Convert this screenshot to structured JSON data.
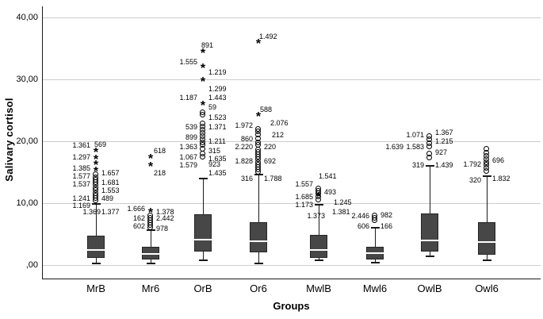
{
  "colors": {
    "box_fill": "#474747",
    "box_border": "#242424",
    "median_line": "#ffffff",
    "whisker": "#1a1a1a",
    "gridline": "#cccccc",
    "text": "#000000",
    "background": "#ffffff"
  },
  "chart_data": {
    "type": "boxplot",
    "title": "",
    "ylabel": "Salivary cortisol",
    "xlabel": "Groups",
    "ylim": [
      0,
      40
    ],
    "grid": "horizontal",
    "legend": "none",
    "yticks": [
      {
        "label": ",00",
        "value": 0
      },
      {
        "label": "10,00",
        "value": 10
      },
      {
        "label": "20,00",
        "value": 20
      },
      {
        "label": "30,00",
        "value": 30
      },
      {
        "label": "40,00",
        "value": 40
      }
    ],
    "groups": [
      {
        "name": "MrB",
        "box": {
          "whisker_low": 0.3,
          "q1": 1.2,
          "median": 2.4,
          "q3": 4.8,
          "whisker_high": 9.9
        },
        "outlier_circles": [
          14.6,
          14.1,
          13.7,
          13.3,
          12.9,
          12.5,
          12.1,
          11.6,
          11.2,
          10.8,
          10.4
        ],
        "extreme_stars": [
          18.2,
          17.0,
          16.2,
          15.1
        ],
        "labels_left": [
          {
            "text": "1.361",
            "value": 19.4
          },
          {
            "text": "1.297",
            "value": 17.4
          },
          {
            "text": "1.385",
            "value": 15.7
          },
          {
            "text": "1.577",
            "value": 14.4
          },
          {
            "text": "1.537",
            "value": 13.1
          },
          {
            "text": "1.241",
            "value": 10.8
          },
          {
            "text": "1.169",
            "value": 9.6
          },
          {
            "text": "1.369",
            "value": 8.6,
            "dx": 13
          }
        ],
        "labels_right": [
          {
            "text": "569",
            "value": 19.5,
            "dx": -9
          },
          {
            "text": "1.657",
            "value": 14.9
          },
          {
            "text": "1.681",
            "value": 13.3
          },
          {
            "text": "1.553",
            "value": 12.1
          },
          {
            "text": "489",
            "value": 10.8
          },
          {
            "text": "1.377",
            "value": 8.6
          }
        ]
      },
      {
        "name": "Mr6",
        "box": {
          "whisker_low": 0.3,
          "q1": 0.9,
          "median": 1.8,
          "q3": 2.9,
          "whisker_high": 5.6
        },
        "outlier_circles": [
          8.0,
          7.6,
          7.2,
          6.8,
          6.4,
          6.0
        ],
        "extreme_stars": [
          17.2,
          15.9,
          8.4
        ],
        "labels_left": [
          {
            "text": "1.666",
            "value": 9.1
          },
          {
            "text": "162",
            "value": 7.6
          },
          {
            "text": "602",
            "value": 6.3
          }
        ],
        "labels_right": [
          {
            "text": "618",
            "value": 18.5,
            "dx": -3
          },
          {
            "text": "218",
            "value": 14.9,
            "dx": -3
          },
          {
            "text": "1.378",
            "value": 8.6
          },
          {
            "text": "2.442",
            "value": 7.6
          },
          {
            "text": "978",
            "value": 5.9
          }
        ]
      },
      {
        "name": "OrB",
        "box": {
          "whisker_low": 0.8,
          "q1": 2.2,
          "median": 4.1,
          "q3": 8.2,
          "whisker_high": 14.0
        },
        "outlier_circles": [
          24.6,
          24.2,
          22.8,
          22.3,
          21.8,
          21.3,
          20.8,
          20.3,
          19.8,
          19.3,
          18.7,
          17.9,
          17.4
        ],
        "extreme_stars": [
          34.2,
          31.8,
          29.6,
          25.8
        ],
        "labels_left": [
          {
            "text": "1.555",
            "value": 32.8
          },
          {
            "text": "1.187",
            "value": 27.1
          },
          {
            "text": "539",
            "value": 22.3
          },
          {
            "text": "899",
            "value": 20.6
          },
          {
            "text": "1.363",
            "value": 19.1
          },
          {
            "text": "1.067",
            "value": 17.5
          },
          {
            "text": "1.579",
            "value": 16.2
          }
        ],
        "labels_right": [
          {
            "text": "891",
            "value": 35.5,
            "dx": -9
          },
          {
            "text": "1.219",
            "value": 31.1
          },
          {
            "text": "1.299",
            "value": 28.5
          },
          {
            "text": "1.443",
            "value": 27.1
          },
          {
            "text": "59",
            "value": 25.5
          },
          {
            "text": "1.523",
            "value": 23.8
          },
          {
            "text": "1.371",
            "value": 22.3
          },
          {
            "text": "1.211",
            "value": 20.0
          },
          {
            "text": "315",
            "value": 18.5
          },
          {
            "text": "1.635",
            "value": 17.2
          },
          {
            "text": "923",
            "value": 16.3
          },
          {
            "text": "1.435",
            "value": 14.9
          }
        ]
      },
      {
        "name": "Or6",
        "box": {
          "whisker_low": 0.3,
          "q1": 2.1,
          "median": 3.9,
          "q3": 6.9,
          "whisker_high": 14.6
        },
        "outlier_circles": [
          21.9,
          21.5,
          21.0,
          20.4,
          19.8,
          19.3,
          18.6,
          18.2,
          17.8,
          17.4,
          17.0,
          16.6,
          16.2,
          15.8,
          15.4,
          15.0
        ],
        "extreme_stars": [
          35.8,
          24.0
        ],
        "labels_left": [
          {
            "text": "1.972",
            "value": 22.6
          },
          {
            "text": "860",
            "value": 20.4
          },
          {
            "text": "2.220",
            "value": 19.1
          },
          {
            "text": "1.828",
            "value": 16.8
          },
          {
            "text": "316",
            "value": 14.0
          }
        ],
        "labels_right": [
          {
            "text": "1.492",
            "value": 36.9,
            "dx": -6
          },
          {
            "text": "588",
            "value": 25.1,
            "dx": -5
          },
          {
            "text": "2.076",
            "value": 22.9,
            "dx": 8
          },
          {
            "text": "212",
            "value": 21.0,
            "dx": 10
          },
          {
            "text": "220",
            "value": 19.1
          },
          {
            "text": "692",
            "value": 16.8
          },
          {
            "text": "1.788",
            "value": 14.0
          }
        ]
      },
      {
        "name": "MwlB",
        "box": {
          "whisker_low": 0.8,
          "q1": 1.2,
          "median": 2.4,
          "q3": 4.9,
          "whisker_high": 9.7
        },
        "outlier_circles": [
          12.3,
          11.9,
          11.5,
          11.0,
          10.5
        ],
        "extreme_stars": [
          11.0
        ],
        "labels_left": [
          {
            "text": "1.557",
            "value": 13.1
          },
          {
            "text": "1.685",
            "value": 11.0
          },
          {
            "text": "1.173",
            "value": 9.7
          },
          {
            "text": "1.373",
            "value": 7.9,
            "dx": 15
          }
        ],
        "labels_right": [
          {
            "text": "1.541",
            "value": 14.4,
            "dx": -7
          },
          {
            "text": "493",
            "value": 11.8
          },
          {
            "text": "1.245",
            "value": 10.1,
            "dx": 12
          },
          {
            "text": "1.381",
            "value": 8.6,
            "dx": 10
          }
        ]
      },
      {
        "name": "Mwl6",
        "box": {
          "whisker_low": 0.4,
          "q1": 0.9,
          "median": 1.9,
          "q3": 2.9,
          "whisker_high": 6.0
        },
        "outlier_circles": [
          8.0,
          7.6,
          7.2
        ],
        "extreme_stars": [],
        "labels_left": [
          {
            "text": "2.446",
            "value": 7.9
          },
          {
            "text": "606",
            "value": 6.3
          }
        ],
        "labels_right": [
          {
            "text": "982",
            "value": 8.1
          },
          {
            "text": "166",
            "value": 6.3
          }
        ]
      },
      {
        "name": "OwlB",
        "box": {
          "whisker_low": 1.4,
          "q1": 2.2,
          "median": 4.0,
          "q3": 8.3,
          "whisker_high": 16.0
        },
        "outlier_circles": [
          20.8,
          20.2,
          19.6,
          19.1,
          17.9,
          17.3
        ],
        "extreme_stars": [],
        "labels_left": [
          {
            "text": "1.071",
            "value": 21.0
          },
          {
            "text": "1.639",
            "value": 19.1,
            "dx": -26
          },
          {
            "text": "1.583",
            "value": 19.1
          },
          {
            "text": "319",
            "value": 16.2
          }
        ],
        "labels_right": [
          {
            "text": "1.367",
            "value": 21.4
          },
          {
            "text": "1.215",
            "value": 20.0
          },
          {
            "text": "927",
            "value": 18.2
          },
          {
            "text": "1.439",
            "value": 16.2
          }
        ]
      },
      {
        "name": "Owl6",
        "box": {
          "whisker_low": 0.8,
          "q1": 1.7,
          "median": 3.7,
          "q3": 6.9,
          "whisker_high": 14.4
        },
        "outlier_circles": [
          18.7,
          18.1,
          17.6,
          17.1,
          16.6,
          16.1,
          15.6,
          15.1
        ],
        "extreme_stars": [],
        "labels_left": [
          {
            "text": "1.792",
            "value": 16.3
          },
          {
            "text": "320",
            "value": 13.7
          }
        ],
        "labels_right": [
          {
            "text": "696",
            "value": 16.9
          },
          {
            "text": "1.832",
            "value": 14.0
          }
        ]
      }
    ]
  }
}
